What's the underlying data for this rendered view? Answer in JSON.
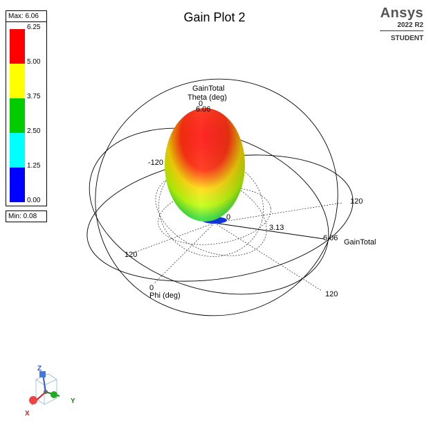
{
  "plot": {
    "title": "Gain Plot 2"
  },
  "legend": {
    "max_label": "Max: 6.06",
    "min_label": "Min: 0.08",
    "ticks": [
      "6.25",
      "5.00",
      "3.75",
      "2.50",
      "1.25",
      "0.00"
    ],
    "bands": [
      "#ff0000",
      "#ffff00",
      "#00cc00",
      "#00ffff",
      "#0000ff"
    ]
  },
  "brand": {
    "name": "Ansys",
    "version": "2022 R2",
    "edition": "STUDENT"
  },
  "axes": {
    "quantity_title": "GainTotal",
    "theta_title": "Theta (deg)",
    "phi_title": "Phi (deg)",
    "theta_zero": "0",
    "theta_neg120": "-120",
    "theta_120": "120",
    "phi_zero": "0",
    "phi_120_a": "120",
    "phi_120_b": "120",
    "radial_max_top": "6.06",
    "radial_mid": "3.13",
    "radial_max": "6.06",
    "radial_origin": "0",
    "radial_axis_label": "GainTotal"
  },
  "triad": {
    "x": "X",
    "y": "Y",
    "z": "Z"
  }
}
